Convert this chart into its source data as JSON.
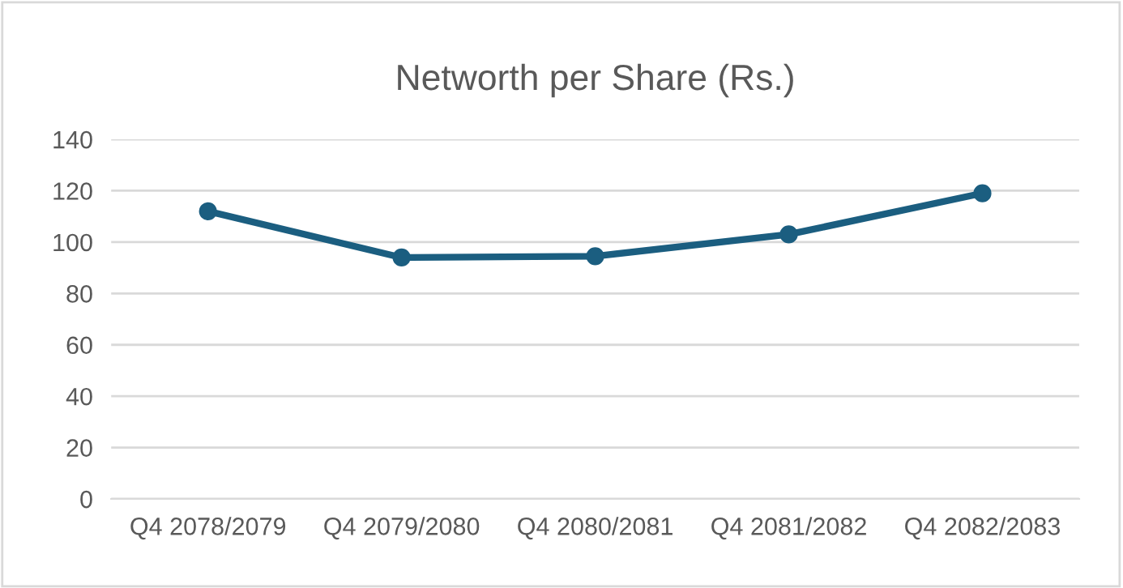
{
  "chart_data": {
    "type": "line",
    "title": "Networth per Share (Rs.)",
    "categories": [
      "Q4 2078/2079",
      "Q4 2079/2080",
      "Q4 2080/2081",
      "Q4 2081/2082",
      "Q4 2082/2083"
    ],
    "series": [
      {
        "color": "#1b5e80",
        "values": [
          112,
          94,
          94.5,
          103,
          119
        ]
      }
    ],
    "ylim": [
      0,
      140
    ],
    "yticks": [
      0,
      20,
      40,
      60,
      80,
      100,
      120,
      140
    ],
    "grid": "y",
    "marker": "circle",
    "line_style": "solid",
    "legend": false
  }
}
